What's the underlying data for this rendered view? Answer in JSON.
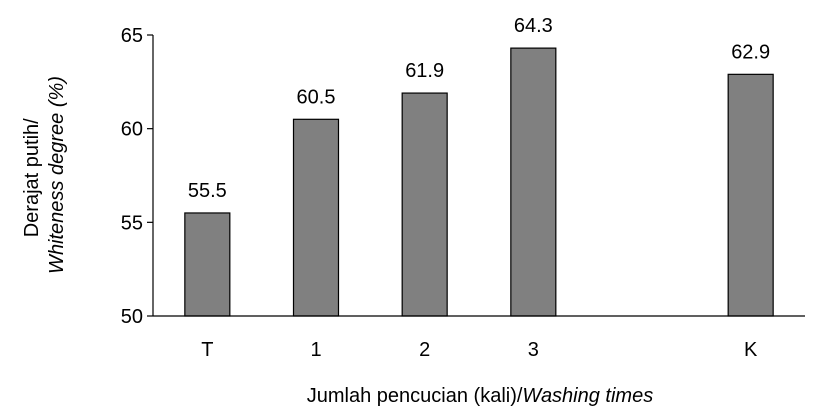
{
  "chart_data": {
    "type": "bar",
    "categories": [
      "T",
      "1",
      "2",
      "3",
      "",
      "K"
    ],
    "values": [
      55.5,
      60.5,
      61.9,
      64.3,
      null,
      62.9
    ],
    "data_labels": [
      "55.5",
      "60.5",
      "61.9",
      "64.3",
      "",
      "62.9"
    ],
    "ylim": [
      50,
      65
    ],
    "yticks": [
      50,
      55,
      60,
      65
    ],
    "ytick_labels": [
      "50",
      "55",
      "60",
      "65"
    ],
    "ylabel_line1": "Derajat putih/",
    "ylabel_line2": "Whiteness degree (%)",
    "xlabel_plain": "Jumlah pencucian (kali)/",
    "xlabel_italic": "Washing times",
    "grid": false,
    "legend": "none",
    "bar_color": "#808080",
    "bar_edge_color": "#000000"
  }
}
